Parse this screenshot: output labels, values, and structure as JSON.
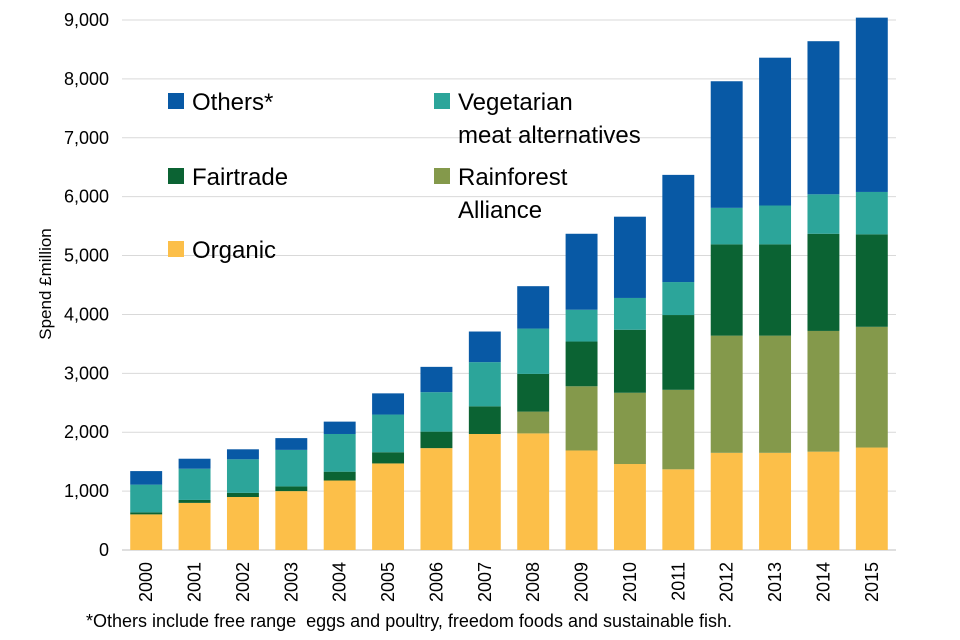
{
  "chart_data": {
    "type": "bar",
    "stacked": true,
    "title": "",
    "xlabel": "",
    "ylabel": "Spend £million",
    "ylim": [
      0,
      9000
    ],
    "yticks": [
      0,
      1000,
      2000,
      3000,
      4000,
      5000,
      6000,
      7000,
      8000,
      9000
    ],
    "ytick_labels": [
      "0",
      "1,000",
      "2,000",
      "3,000",
      "4,000",
      "5,000",
      "6,000",
      "7,000",
      "8,000",
      "9,000"
    ],
    "grid": true,
    "legend_position": "top-left",
    "categories": [
      "2000",
      "2001",
      "2002",
      "2003",
      "2004",
      "2005",
      "2006",
      "2007",
      "2008",
      "2009",
      "2010",
      "2011",
      "2012",
      "2013",
      "2014",
      "2015"
    ],
    "series": [
      {
        "name": "Organic",
        "color": "#FCBF49",
        "values": [
          605,
          800,
          900,
          1000,
          1180,
          1470,
          1730,
          1970,
          1980,
          1690,
          1460,
          1370,
          1650,
          1650,
          1670,
          1740
        ]
      },
      {
        "name": "Rainforest Alliance",
        "color": "#84994B",
        "values": [
          0,
          0,
          0,
          0,
          0,
          0,
          0,
          0,
          370,
          1090,
          1210,
          1350,
          1990,
          1990,
          2050,
          2050
        ]
      },
      {
        "name": "Fairtrade",
        "color": "#0B6333",
        "values": [
          35,
          50,
          70,
          80,
          150,
          190,
          280,
          470,
          640,
          760,
          1070,
          1270,
          1550,
          1550,
          1650,
          1570
        ]
      },
      {
        "name": "Vegetarian meat alternatives",
        "color": "#2CA59A",
        "values": [
          470,
          530,
          570,
          620,
          640,
          640,
          670,
          750,
          770,
          540,
          540,
          560,
          620,
          660,
          670,
          720
        ]
      },
      {
        "name": "Others*",
        "color": "#0859A5",
        "values": [
          230,
          170,
          170,
          200,
          210,
          360,
          430,
          520,
          720,
          1290,
          1380,
          1820,
          2150,
          2510,
          2600,
          2960
        ]
      }
    ],
    "legend": [
      {
        "label_lines": [
          "Others*"
        ],
        "series": "Others*",
        "color": "#0859A5"
      },
      {
        "label_lines": [
          "Vegetarian",
          "meat alternatives"
        ],
        "series": "Vegetarian meat alternatives",
        "color": "#2CA59A"
      },
      {
        "label_lines": [
          "Fairtrade"
        ],
        "series": "Fairtrade",
        "color": "#0B6333"
      },
      {
        "label_lines": [
          "Rainforest",
          "Alliance"
        ],
        "series": "Rainforest Alliance",
        "color": "#84994B"
      },
      {
        "label_lines": [
          "Organic"
        ],
        "series": "Organic",
        "color": "#FCBF49"
      }
    ],
    "footnote": "*Others include free range  eggs and poultry, freedom foods and sustainable fish."
  }
}
